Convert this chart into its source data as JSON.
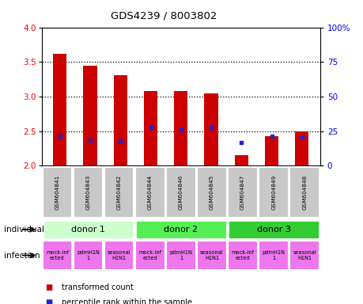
{
  "title": "GDS4239 / 8003802",
  "samples": [
    "GSM604841",
    "GSM604843",
    "GSM604842",
    "GSM604844",
    "GSM604846",
    "GSM604845",
    "GSM604847",
    "GSM604849",
    "GSM604848"
  ],
  "bar_values": [
    3.62,
    3.45,
    3.31,
    3.08,
    3.08,
    3.05,
    2.15,
    2.43,
    2.5
  ],
  "bar_bottom": 2.0,
  "blue_dot_values": [
    2.43,
    2.37,
    2.36,
    2.55,
    2.52,
    2.55,
    2.33,
    2.43,
    2.42
  ],
  "ylim": [
    2.0,
    4.0
  ],
  "yticks_left": [
    2.0,
    2.5,
    3.0,
    3.5,
    4.0
  ],
  "yticks_right_labels": [
    "0",
    "25",
    "50",
    "75",
    "100%"
  ],
  "bar_color": "#cc0000",
  "dot_color": "#2222cc",
  "donors": [
    {
      "label": "donor 1",
      "start": 0,
      "end": 3,
      "color": "#ccffcc"
    },
    {
      "label": "donor 2",
      "start": 3,
      "end": 6,
      "color": "#55ee55"
    },
    {
      "label": "donor 3",
      "start": 6,
      "end": 9,
      "color": "#33cc33"
    }
  ],
  "infections": [
    "mock-inf\nected",
    "pdmH1N\n1",
    "seasonal\nH1N1",
    "mock-inf\nected",
    "pdmH1N\n1",
    "seasonal\nH1N1",
    "mock-inf\nected",
    "pdmH1N\n1",
    "seasonal\nH1N1"
  ],
  "infection_color": "#ee77ee",
  "sample_box_color": "#c8c8c8",
  "legend_red": "transformed count",
  "legend_blue": "percentile rank within the sample",
  "bar_width": 0.45
}
